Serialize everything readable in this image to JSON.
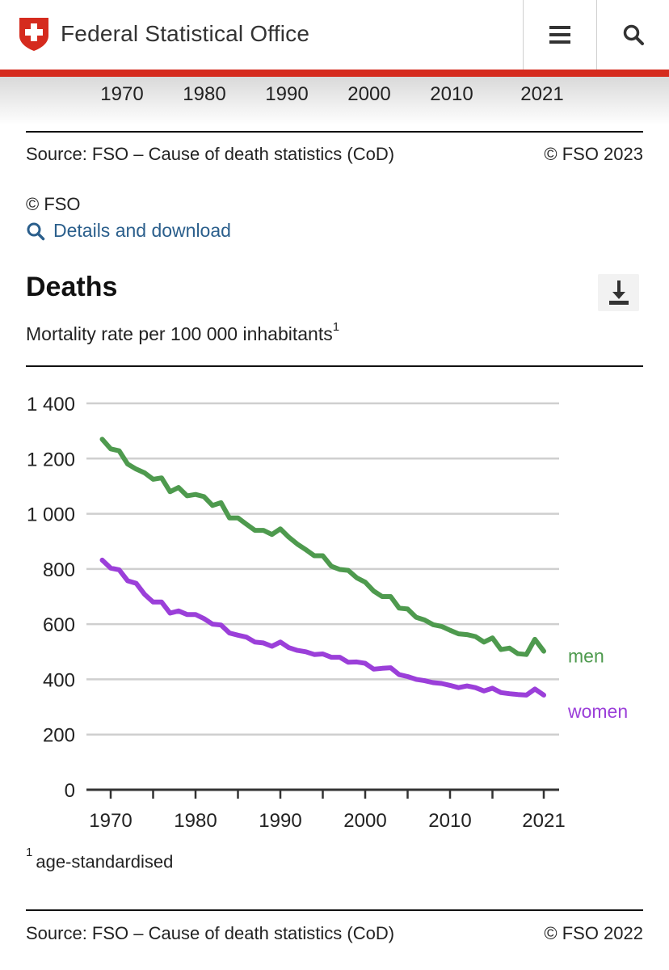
{
  "header": {
    "site_title": "Federal Statistical Office",
    "logo_icon": "swiss-cross-shield-icon",
    "menu_icon": "hamburger-menu-icon",
    "search_icon": "search-icon"
  },
  "previous_chart": {
    "x_ticks": [
      "1970",
      "1980",
      "1990",
      "2000",
      "2010",
      "2021"
    ],
    "source": "Source: FSO – Cause of death statistics (CoD)",
    "copyright": "© FSO 2023"
  },
  "fso_credit": "© FSO",
  "details_link": "Details and download",
  "chart_section": {
    "title": "Deaths",
    "subtitle": "Mortality rate per 100 000 inhabitants",
    "subtitle_footnote_marker": "1",
    "download_icon": "download-icon",
    "footnote_marker": "1",
    "footnote_text": "age-standardised",
    "source": "Source: FSO – Cause of death statistics (CoD)",
    "copyright": "© FSO 2022"
  },
  "chart_data": {
    "type": "line",
    "title": "Deaths",
    "subtitle": "Mortality rate per 100 000 inhabitants",
    "xlabel": "",
    "ylabel": "",
    "xlim": [
      1969,
      2021
    ],
    "ylim": [
      0,
      1400
    ],
    "y_ticks": [
      0,
      200,
      400,
      600,
      800,
      1000,
      1200,
      1400
    ],
    "y_tick_labels": [
      "0",
      "200",
      "400",
      "600",
      "800",
      "1 000",
      "1 200",
      "1 400"
    ],
    "x_ticks": [
      1970,
      1975,
      1980,
      1985,
      1990,
      1995,
      2000,
      2005,
      2010,
      2015,
      2021
    ],
    "x_tick_labels": [
      "1970",
      "1980",
      "1990",
      "2000",
      "2010",
      "2021"
    ],
    "x_tick_label_values": [
      1970,
      1980,
      1990,
      2000,
      2010,
      2021
    ],
    "grid": true,
    "legend": "right, inline labels at line ends",
    "x": [
      1969,
      1970,
      1971,
      1972,
      1973,
      1974,
      1975,
      1976,
      1977,
      1978,
      1979,
      1980,
      1981,
      1982,
      1983,
      1984,
      1985,
      1986,
      1987,
      1988,
      1989,
      1990,
      1991,
      1992,
      1993,
      1994,
      1995,
      1996,
      1997,
      1998,
      1999,
      2000,
      2001,
      2002,
      2003,
      2004,
      2005,
      2006,
      2007,
      2008,
      2009,
      2010,
      2011,
      2012,
      2013,
      2014,
      2015,
      2016,
      2017,
      2018,
      2019,
      2020,
      2021
    ],
    "series": [
      {
        "name": "men",
        "color": "#4e9a4e",
        "values": [
          1270,
          1235,
          1228,
          1180,
          1162,
          1148,
          1125,
          1130,
          1080,
          1095,
          1065,
          1070,
          1062,
          1030,
          1040,
          985,
          985,
          962,
          940,
          940,
          925,
          945,
          915,
          890,
          870,
          848,
          848,
          810,
          798,
          795,
          768,
          752,
          720,
          700,
          700,
          658,
          655,
          625,
          615,
          598,
          592,
          578,
          565,
          562,
          555,
          535,
          550,
          508,
          513,
          493,
          490,
          545,
          502
        ]
      },
      {
        "name": "women",
        "color": "#9b3fd9",
        "values": [
          832,
          803,
          797,
          757,
          748,
          708,
          680,
          680,
          640,
          648,
          635,
          635,
          620,
          600,
          597,
          568,
          560,
          553,
          535,
          532,
          520,
          535,
          515,
          505,
          500,
          490,
          492,
          480,
          480,
          462,
          463,
          458,
          437,
          440,
          442,
          417,
          410,
          400,
          395,
          388,
          385,
          378,
          370,
          376,
          370,
          358,
          368,
          352,
          348,
          345,
          343,
          365,
          343
        ]
      }
    ]
  }
}
